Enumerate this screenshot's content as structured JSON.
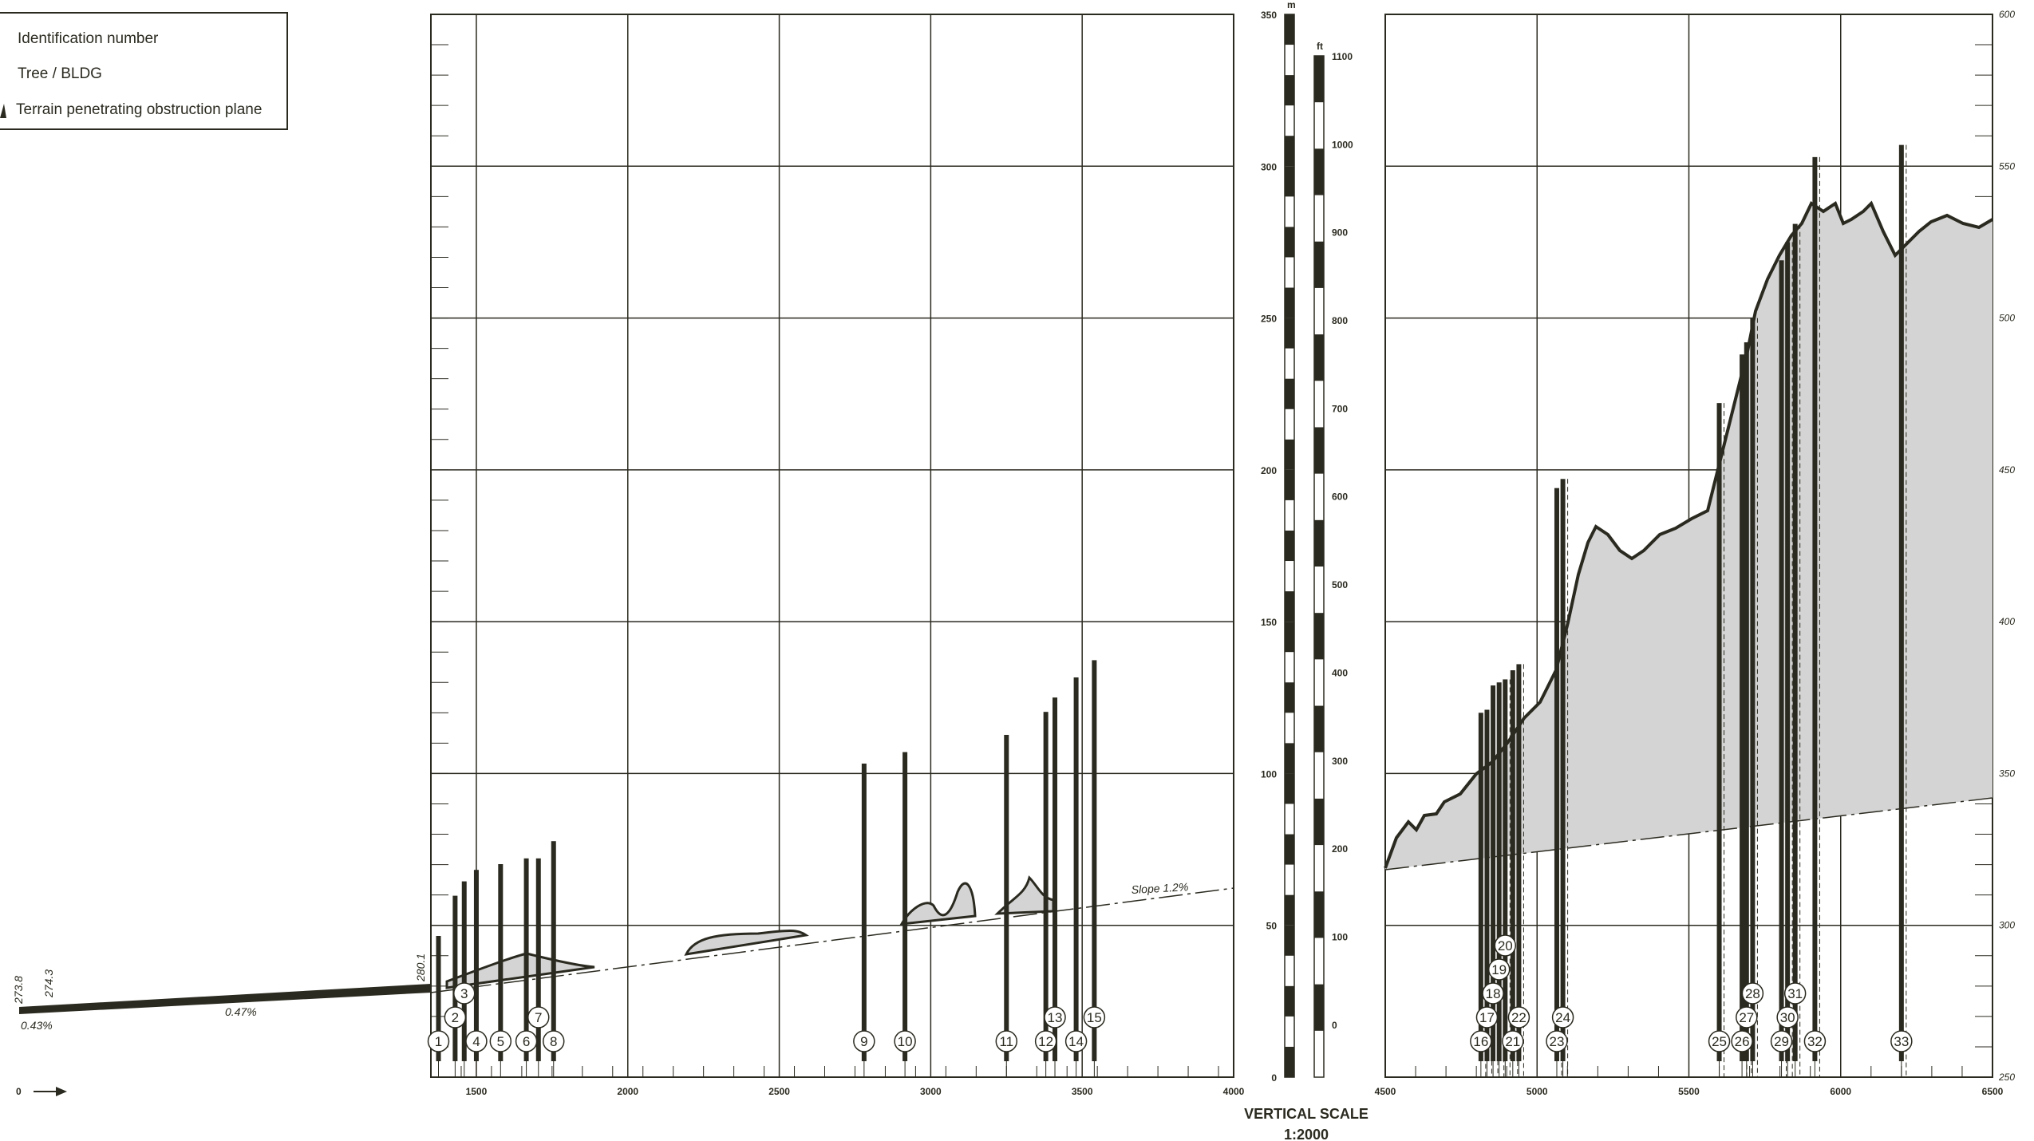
{
  "legend": {
    "items": [
      {
        "label": "Identification number"
      },
      {
        "label": "Tree / BLDG"
      },
      {
        "label": "Terrain penetrating obstruction plane"
      }
    ]
  },
  "vertical_scale": {
    "title": "VERTICAL SCALE",
    "ratio": "1:2000",
    "m_unit": "m",
    "ft_unit": "ft",
    "m_ticks": [
      "350",
      "300",
      "250",
      "200",
      "150",
      "100",
      "50",
      "0"
    ],
    "ft_ticks": [
      "1100",
      "1000",
      "900",
      "800",
      "700",
      "600",
      "500",
      "400",
      "300",
      "200",
      "100",
      "0"
    ]
  },
  "annotations": {
    "slope_left_1": "0.43%",
    "slope_left_2": "0.47%",
    "slope_right": "Slope 1.2%",
    "elev_1": "273.8",
    "elev_2": "274.3",
    "elev_3": "280.1",
    "origin_label": "0"
  },
  "chart_data": {
    "type": "area",
    "colors": {
      "ink": "#2b2a20",
      "terrain_fill": "#d4d4d4",
      "background": "#ffffff"
    },
    "grid": true,
    "x_unit": "m",
    "left_panel": {
      "xlim": [
        1350,
        4000
      ],
      "x_ticks": [
        1500,
        2000,
        2500,
        3000,
        3500,
        4000
      ],
      "y_ticks": [],
      "runway_profile": {
        "x": [
          0,
          1350
        ],
        "y_start": 273.8,
        "y_end": 280.1
      }
    },
    "right_panel": {
      "xlim": [
        4500,
        6500
      ],
      "x_ticks": [
        4500,
        5000,
        5500,
        6000,
        6500
      ],
      "ylim": [
        250,
        600
      ],
      "y_ticks": [
        250,
        300,
        350,
        400,
        450,
        500,
        550,
        600
      ]
    },
    "obstacles": [
      {
        "id": "1",
        "x": 1375,
        "top": 300,
        "label_row": 1
      },
      {
        "id": "2",
        "x": 1430,
        "top": 314,
        "label_row": 2
      },
      {
        "id": "3",
        "x": 1460,
        "top": 319,
        "label_row": 3
      },
      {
        "id": "4",
        "x": 1500,
        "top": 323,
        "label_row": 1
      },
      {
        "id": "5",
        "x": 1580,
        "top": 325,
        "label_row": 1
      },
      {
        "id": "6",
        "x": 1665,
        "top": 327,
        "label_row": 1
      },
      {
        "id": "7",
        "x": 1705,
        "top": 327,
        "label_row": 2
      },
      {
        "id": "8",
        "x": 1755,
        "top": 333,
        "label_row": 1
      },
      {
        "id": "9",
        "x": 2780,
        "top": 360,
        "label_row": 1
      },
      {
        "id": "10",
        "x": 2915,
        "top": 364,
        "label_row": 1
      },
      {
        "id": "11",
        "x": 3250,
        "top": 370,
        "label_row": 1
      },
      {
        "id": "12",
        "x": 3380,
        "top": 378,
        "label_row": 1
      },
      {
        "id": "13",
        "x": 3410,
        "top": 383,
        "label_row": 2
      },
      {
        "id": "14",
        "x": 3480,
        "top": 390,
        "label_row": 1
      },
      {
        "id": "15",
        "x": 3540,
        "top": 396,
        "label_row": 2
      },
      {
        "id": "16",
        "x": 4815,
        "top": 370,
        "label_row": 1
      },
      {
        "id": "17",
        "x": 4835,
        "top": 371,
        "label_row": 2
      },
      {
        "id": "18",
        "x": 4855,
        "top": 379,
        "label_row": 3
      },
      {
        "id": "19",
        "x": 4875,
        "top": 380,
        "label_row": 4
      },
      {
        "id": "20",
        "x": 4895,
        "top": 381,
        "label_row": 5
      },
      {
        "id": "21",
        "x": 4920,
        "top": 384,
        "label_row": 1
      },
      {
        "id": "22",
        "x": 4940,
        "top": 386,
        "label_row": 2
      },
      {
        "id": "23",
        "x": 5065,
        "top": 444,
        "label_row": 1
      },
      {
        "id": "24",
        "x": 5085,
        "top": 447,
        "label_row": 2
      },
      {
        "id": "25",
        "x": 5600,
        "top": 472,
        "label_row": 1
      },
      {
        "id": "26",
        "x": 5675,
        "top": 488,
        "label_row": 1
      },
      {
        "id": "27",
        "x": 5690,
        "top": 492,
        "label_row": 2
      },
      {
        "id": "28",
        "x": 5710,
        "top": 500,
        "label_row": 3
      },
      {
        "id": "29",
        "x": 5805,
        "top": 519,
        "label_row": 1
      },
      {
        "id": "30",
        "x": 5825,
        "top": 525,
        "label_row": 2
      },
      {
        "id": "31",
        "x": 5850,
        "top": 531,
        "label_row": 3
      },
      {
        "id": "32",
        "x": 5915,
        "top": 553,
        "label_row": 1
      },
      {
        "id": "33",
        "x": 6200,
        "top": 557,
        "label_row": 1
      }
    ]
  }
}
